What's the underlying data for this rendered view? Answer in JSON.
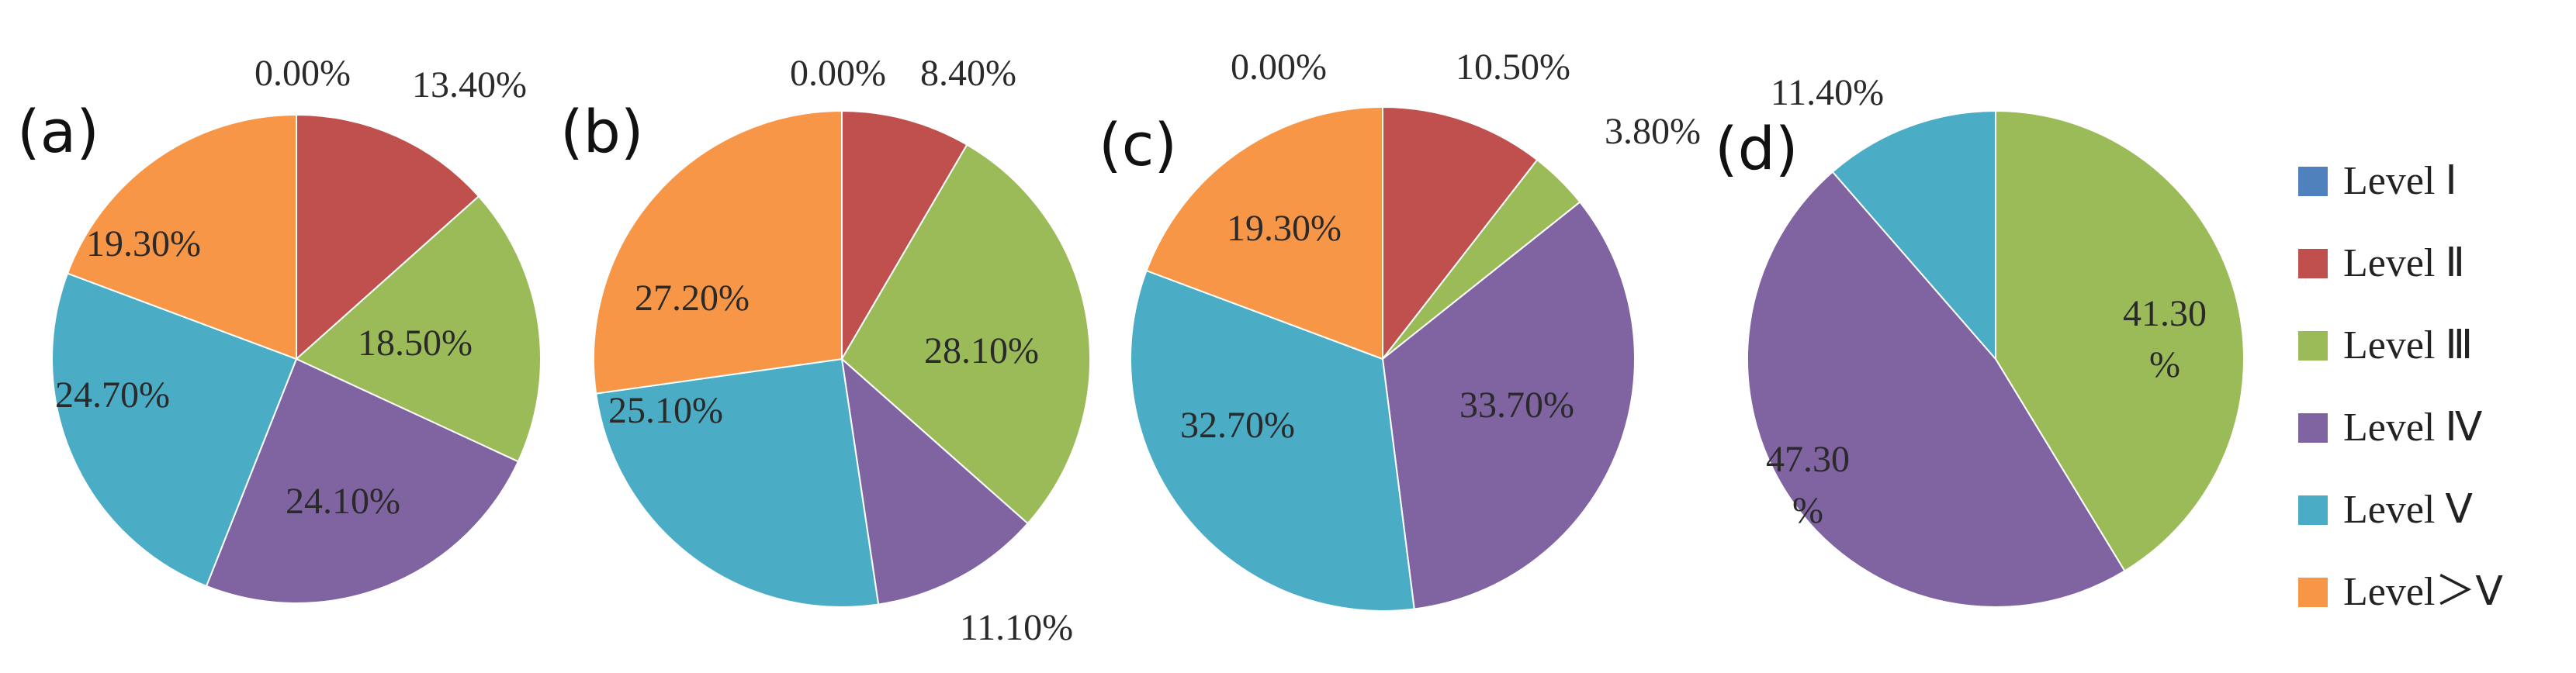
{
  "legend": {
    "items": [
      {
        "label": "Level Ⅰ",
        "color": "#4f81bd"
      },
      {
        "label": "Level Ⅱ",
        "color": "#c0504d"
      },
      {
        "label": "Level Ⅲ",
        "color": "#9bbb59"
      },
      {
        "label": "Level Ⅳ",
        "color": "#8064a2"
      },
      {
        "label": "Level Ⅴ",
        "color": "#4bacc6"
      },
      {
        "label": "Level＞Ⅴ",
        "color": "#f79646"
      }
    ]
  },
  "chart_data": [
    {
      "type": "pie",
      "panel": "(a)",
      "categories": [
        "Level Ⅰ",
        "Level Ⅱ",
        "Level Ⅲ",
        "Level Ⅳ",
        "Level Ⅴ",
        "Level＞Ⅴ"
      ],
      "values": [
        0.0,
        13.4,
        18.5,
        24.1,
        24.7,
        19.3
      ],
      "labels": [
        "0.00%",
        "13.40%",
        "18.50%",
        "24.10%",
        "24.70%",
        "19.30%"
      ],
      "colors": [
        "#4f81bd",
        "#c0504d",
        "#9bbb59",
        "#8064a2",
        "#4bacc6",
        "#f79646"
      ]
    },
    {
      "type": "pie",
      "panel": "(b)",
      "categories": [
        "Level Ⅰ",
        "Level Ⅱ",
        "Level Ⅲ",
        "Level Ⅳ",
        "Level Ⅴ",
        "Level＞Ⅴ"
      ],
      "values": [
        0.0,
        8.4,
        28.1,
        11.1,
        25.1,
        27.2
      ],
      "labels": [
        "0.00%",
        "8.40%",
        "28.10%",
        "11.10%",
        "25.10%",
        "27.20%"
      ],
      "colors": [
        "#4f81bd",
        "#c0504d",
        "#9bbb59",
        "#8064a2",
        "#4bacc6",
        "#f79646"
      ]
    },
    {
      "type": "pie",
      "panel": "(c)",
      "categories": [
        "Level Ⅰ",
        "Level Ⅱ",
        "Level Ⅲ",
        "Level Ⅳ",
        "Level Ⅴ",
        "Level＞Ⅴ"
      ],
      "values": [
        0.0,
        10.5,
        3.8,
        33.7,
        32.7,
        19.3
      ],
      "labels": [
        "0.00%",
        "10.50%",
        "3.80%",
        "33.70%",
        "32.70%",
        "19.30%"
      ],
      "colors": [
        "#4f81bd",
        "#c0504d",
        "#9bbb59",
        "#8064a2",
        "#4bacc6",
        "#f79646"
      ]
    },
    {
      "type": "pie",
      "panel": "(d)",
      "categories": [
        "Level Ⅲ",
        "Level Ⅳ",
        "Level Ⅴ"
      ],
      "values": [
        41.3,
        47.3,
        11.4
      ],
      "labels": [
        [
          "41.30",
          "%"
        ],
        [
          "47.30",
          "%"
        ],
        [
          "11.40%"
        ]
      ],
      "colors": [
        "#9bbb59",
        "#8064a2",
        "#4bacc6"
      ]
    }
  ]
}
